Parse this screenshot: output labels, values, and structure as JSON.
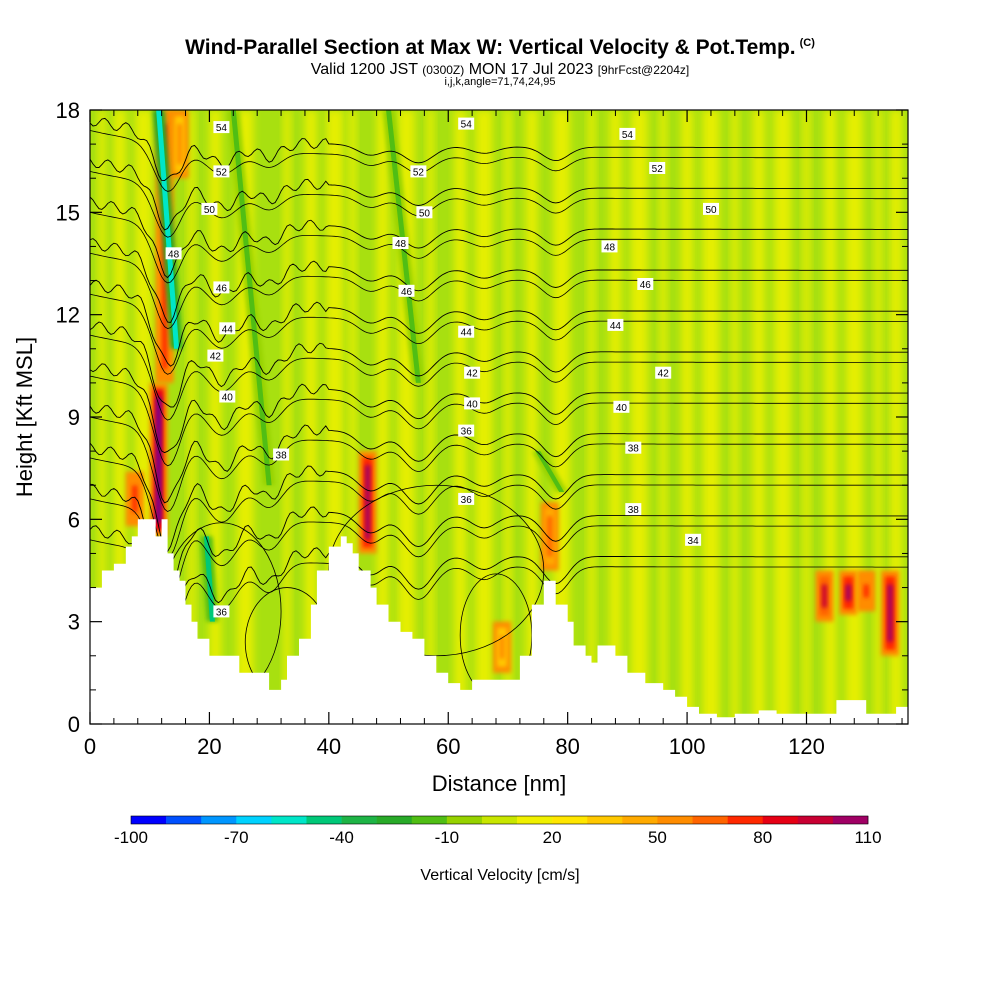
{
  "title": {
    "main": "Wind-Parallel Section at Max W: Vertical Velocity & Pot.Temp.",
    "copyright": "(C)",
    "valid_prefix": "Valid 1200 JST",
    "valid_z": "(0300Z)",
    "valid_date": "MON 17 Jul 2023",
    "forecast": "[9hrFcst@2204z]",
    "indices": "i,j,k,angle=71,74,24,95"
  },
  "chart_data": {
    "type": "heatmap",
    "xlabel": "Distance [nm]",
    "ylabel": "Height [Kft MSL]",
    "xlim": [
      0,
      137
    ],
    "ylim": [
      0,
      18
    ],
    "x_ticks": [
      0,
      20,
      40,
      60,
      80,
      100,
      120
    ],
    "y_ticks": [
      0,
      3,
      6,
      9,
      12,
      15,
      18
    ],
    "colorbar": {
      "label": "Vertical Velocity [cm/s]",
      "min": -100,
      "max": 110,
      "step": 10,
      "tick_labels": [
        -100,
        -70,
        -40,
        -10,
        20,
        50,
        80,
        110
      ],
      "colors": [
        "#0000ff",
        "#0050ff",
        "#0096ff",
        "#00d2ff",
        "#00e6c8",
        "#00c878",
        "#1eb446",
        "#28aa28",
        "#50be14",
        "#96d200",
        "#c8e600",
        "#f0f000",
        "#ffe600",
        "#ffc800",
        "#ffaa00",
        "#ff8c00",
        "#ff6400",
        "#ff2800",
        "#e60014",
        "#c80032",
        "#a00064",
        "#6e0096"
      ]
    },
    "field": {
      "background": [
        "#a8e010",
        "#ecf000"
      ],
      "updrafts": [
        {
          "x": 7.5,
          "z0": 5.8,
          "z1": 7.4,
          "w": 60
        },
        {
          "x": 11.5,
          "z0": 5.5,
          "z1": 10.0,
          "w": 110
        },
        {
          "x": 12.5,
          "z0": 10.0,
          "z1": 18.0,
          "w": 60
        },
        {
          "x": 15.0,
          "z0": 16.0,
          "z1": 18.0,
          "w": 40
        },
        {
          "x": 46.5,
          "z0": 5.0,
          "z1": 8.0,
          "w": 90
        },
        {
          "x": 77.0,
          "z0": 4.5,
          "z1": 6.5,
          "w": 50
        },
        {
          "x": 123.0,
          "z0": 3.0,
          "z1": 4.5,
          "w": 80
        },
        {
          "x": 127.0,
          "z0": 3.2,
          "z1": 4.5,
          "w": 90
        },
        {
          "x": 130.0,
          "z0": 3.3,
          "z1": 4.5,
          "w": 60
        },
        {
          "x": 134.0,
          "z0": 2.0,
          "z1": 4.5,
          "w": 90
        },
        {
          "x": 69.0,
          "z0": 1.5,
          "z1": 3.0,
          "w": 40
        }
      ],
      "downdrafts": [
        {
          "x": 11.5,
          "z": 18.0,
          "x2": 14.5,
          "z2": 11.0,
          "w": -70
        },
        {
          "x": 19.5,
          "z": 5.5,
          "x2": 20.5,
          "z2": 3.0,
          "w": -60
        },
        {
          "x": 24.0,
          "z": 18.0,
          "x2": 30.0,
          "z2": 7.0,
          "w": -30
        },
        {
          "x": 50.0,
          "z": 18.0,
          "x2": 55.0,
          "z2": 10.0,
          "w": -30
        },
        {
          "x": 75.0,
          "z": 8.0,
          "x2": 79.0,
          "z2": 6.8,
          "w": -30
        }
      ]
    },
    "terrain": [
      [
        0,
        4.0
      ],
      [
        2,
        4.0
      ],
      [
        2,
        4.5
      ],
      [
        4,
        4.5
      ],
      [
        4,
        4.7
      ],
      [
        6,
        4.7
      ],
      [
        6,
        5.2
      ],
      [
        7,
        5.2
      ],
      [
        7,
        5.5
      ],
      [
        8,
        5.5
      ],
      [
        8,
        6.0
      ],
      [
        11,
        6.0
      ],
      [
        11,
        5.5
      ],
      [
        12,
        5.5
      ],
      [
        12,
        6.0
      ],
      [
        13,
        6.0
      ],
      [
        13,
        5.0
      ],
      [
        14,
        5.0
      ],
      [
        14,
        4.5
      ],
      [
        15,
        4.5
      ],
      [
        15,
        4.2
      ],
      [
        16,
        4.2
      ],
      [
        16,
        3.5
      ],
      [
        17,
        3.5
      ],
      [
        17,
        3.0
      ],
      [
        18,
        3.0
      ],
      [
        18,
        2.5
      ],
      [
        20,
        2.5
      ],
      [
        20,
        2.0
      ],
      [
        25,
        2.0
      ],
      [
        25,
        1.5
      ],
      [
        30,
        1.5
      ],
      [
        30,
        1.0
      ],
      [
        32,
        1.0
      ],
      [
        32,
        1.3
      ],
      [
        33,
        1.3
      ],
      [
        33,
        2.0
      ],
      [
        35,
        2.0
      ],
      [
        35,
        2.5
      ],
      [
        37,
        2.5
      ],
      [
        37,
        3.5
      ],
      [
        38,
        3.5
      ],
      [
        38,
        4.5
      ],
      [
        40,
        4.5
      ],
      [
        40,
        5.2
      ],
      [
        42,
        5.2
      ],
      [
        42,
        5.5
      ],
      [
        43,
        5.5
      ],
      [
        43,
        5.3
      ],
      [
        44,
        5.3
      ],
      [
        44,
        5.0
      ],
      [
        45,
        5.0
      ],
      [
        45,
        4.5
      ],
      [
        47,
        4.5
      ],
      [
        47,
        4.0
      ],
      [
        48,
        4.0
      ],
      [
        48,
        3.5
      ],
      [
        50,
        3.5
      ],
      [
        50,
        3.0
      ],
      [
        52,
        3.0
      ],
      [
        52,
        2.7
      ],
      [
        54,
        2.7
      ],
      [
        54,
        2.5
      ],
      [
        56,
        2.5
      ],
      [
        56,
        2.0
      ],
      [
        58,
        2.0
      ],
      [
        58,
        1.5
      ],
      [
        60,
        1.5
      ],
      [
        60,
        1.2
      ],
      [
        62,
        1.2
      ],
      [
        62,
        1.0
      ],
      [
        64,
        1.0
      ],
      [
        64,
        1.3
      ],
      [
        72,
        1.3
      ],
      [
        72,
        2.0
      ],
      [
        74,
        2.0
      ],
      [
        74,
        3.5
      ],
      [
        76,
        3.5
      ],
      [
        76,
        4.2
      ],
      [
        78,
        4.2
      ],
      [
        78,
        3.5
      ],
      [
        80,
        3.5
      ],
      [
        80,
        3.0
      ],
      [
        81,
        3.0
      ],
      [
        81,
        2.3
      ],
      [
        83,
        2.3
      ],
      [
        83,
        2.0
      ],
      [
        84,
        2.0
      ],
      [
        84,
        1.8
      ],
      [
        85,
        1.8
      ],
      [
        85,
        2.3
      ],
      [
        88,
        2.3
      ],
      [
        88,
        2.0
      ],
      [
        90,
        2.0
      ],
      [
        90,
        1.5
      ],
      [
        93,
        1.5
      ],
      [
        93,
        1.2
      ],
      [
        96,
        1.2
      ],
      [
        96,
        1.0
      ],
      [
        98,
        1.0
      ],
      [
        98,
        0.8
      ],
      [
        100,
        0.8
      ],
      [
        100,
        0.5
      ],
      [
        102,
        0.5
      ],
      [
        102,
        0.3
      ],
      [
        105,
        0.3
      ],
      [
        105,
        0.2
      ],
      [
        108,
        0.2
      ],
      [
        108,
        0.3
      ],
      [
        112,
        0.3
      ],
      [
        112,
        0.4
      ],
      [
        115,
        0.4
      ],
      [
        115,
        0.3
      ],
      [
        125,
        0.3
      ],
      [
        125,
        0.7
      ],
      [
        130,
        0.7
      ],
      [
        130,
        0.3
      ],
      [
        135,
        0.3
      ],
      [
        135,
        0.5
      ],
      [
        137,
        0.5
      ]
    ],
    "theta_contours": {
      "levels": [
        34,
        36,
        38,
        40,
        42,
        44,
        46,
        48,
        50,
        52,
        54
      ],
      "labels": [
        {
          "text": "54",
          "x": 22,
          "z": 17.5
        },
        {
          "text": "54",
          "x": 63,
          "z": 17.6
        },
        {
          "text": "54",
          "x": 90,
          "z": 17.3
        },
        {
          "text": "52",
          "x": 22,
          "z": 16.2
        },
        {
          "text": "52",
          "x": 55,
          "z": 16.2
        },
        {
          "text": "52",
          "x": 95,
          "z": 16.3
        },
        {
          "text": "50",
          "x": 20,
          "z": 15.1
        },
        {
          "text": "50",
          "x": 56,
          "z": 15.0
        },
        {
          "text": "50",
          "x": 104,
          "z": 15.1
        },
        {
          "text": "48",
          "x": 14,
          "z": 13.8
        },
        {
          "text": "48",
          "x": 52,
          "z": 14.1
        },
        {
          "text": "48",
          "x": 87,
          "z": 14.0
        },
        {
          "text": "46",
          "x": 22,
          "z": 12.8
        },
        {
          "text": "46",
          "x": 53,
          "z": 12.7
        },
        {
          "text": "46",
          "x": 93,
          "z": 12.9
        },
        {
          "text": "44",
          "x": 23,
          "z": 11.6
        },
        {
          "text": "44",
          "x": 63,
          "z": 11.5
        },
        {
          "text": "44",
          "x": 88,
          "z": 11.7
        },
        {
          "text": "42",
          "x": 21,
          "z": 10.8
        },
        {
          "text": "42",
          "x": 64,
          "z": 10.3
        },
        {
          "text": "42",
          "x": 96,
          "z": 10.3
        },
        {
          "text": "40",
          "x": 23,
          "z": 9.6
        },
        {
          "text": "40",
          "x": 64,
          "z": 9.4
        },
        {
          "text": "40",
          "x": 89,
          "z": 9.3
        },
        {
          "text": "38",
          "x": 32,
          "z": 7.9
        },
        {
          "text": "38",
          "x": 91,
          "z": 8.1
        },
        {
          "text": "38",
          "x": 91,
          "z": 6.3
        },
        {
          "text": "36",
          "x": 63,
          "z": 8.6
        },
        {
          "text": "36",
          "x": 63,
          "z": 6.6
        },
        {
          "text": "36",
          "x": 22,
          "z": 3.3
        },
        {
          "text": "34",
          "x": 101,
          "z": 5.4
        }
      ]
    }
  }
}
